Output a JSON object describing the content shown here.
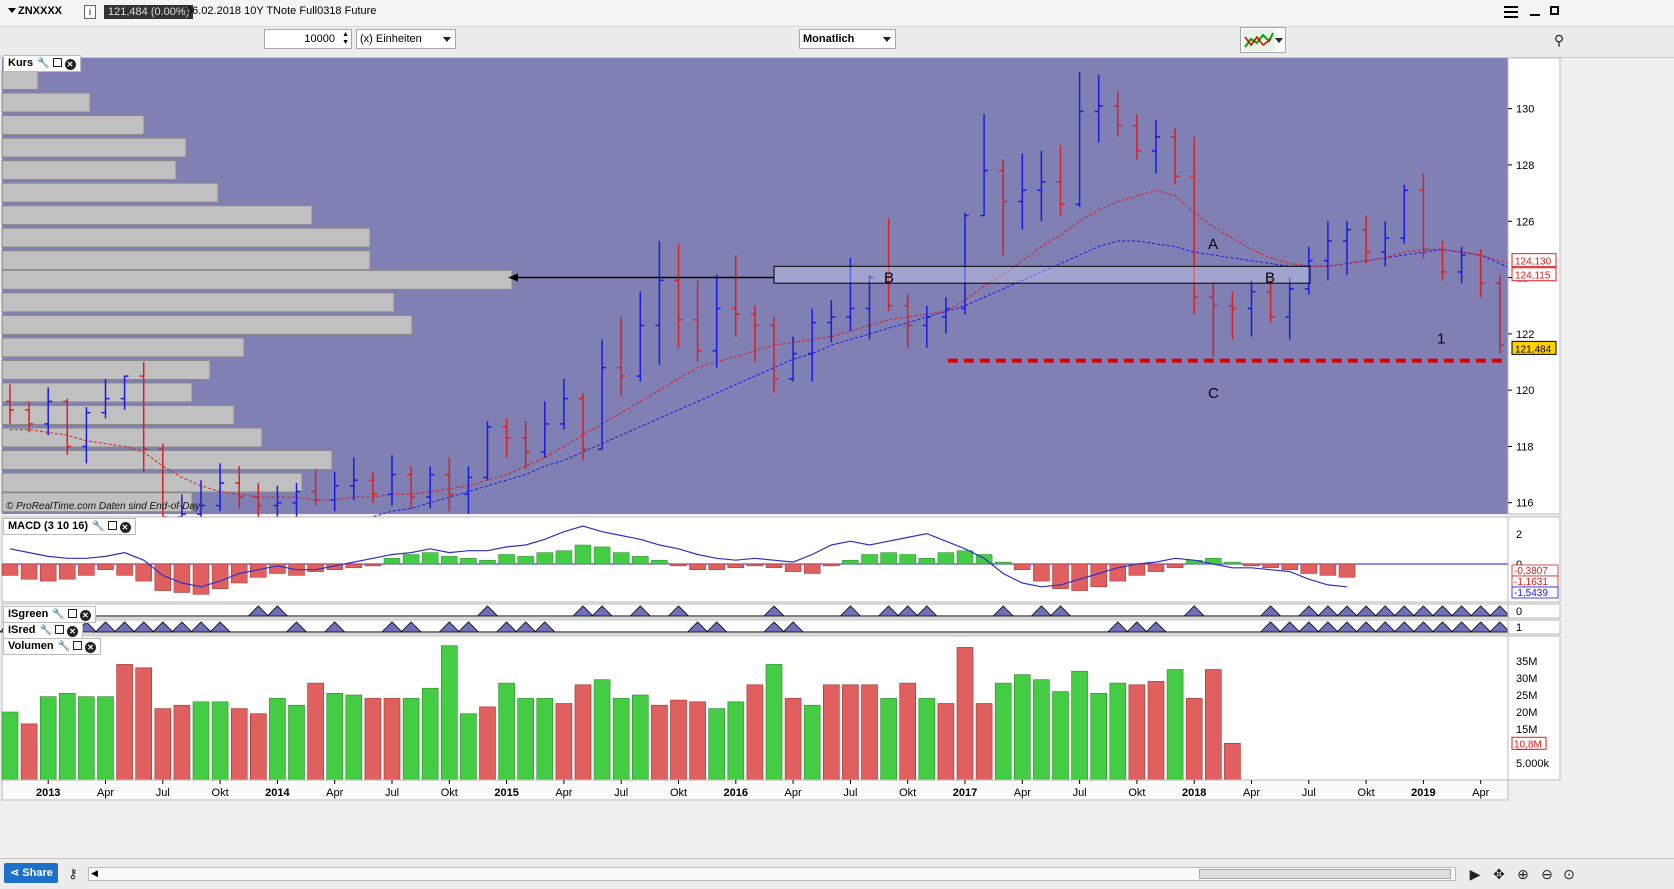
{
  "topbar": {
    "symbol": "ZNXXXX",
    "price_badge": "121,484 (0.00%)",
    "info": "06.02.2018  10Y TNote Full0318 Future"
  },
  "toolbar": {
    "quantity": "10000",
    "unit_label": "(x) Einheiten",
    "timeframe": "Monatlich"
  },
  "panes": {
    "price": {
      "title": "Kurs",
      "watermark": "© ProRealTime.com  Daten sind End-of-Day"
    },
    "macd": {
      "title": "MACD (3 10 16)"
    },
    "isgreen": {
      "title": "ISgreen"
    },
    "isred": {
      "title": "ISred"
    },
    "volume": {
      "title": "Volumen"
    }
  },
  "bottombar": {
    "share_label": "Share"
  },
  "colors": {
    "up": "#1a1adc",
    "down": "#d42020",
    "bg_chart": "#8080b4",
    "vol_up": "#44cc44",
    "vol_down": "#e06060",
    "level_line": "#e00000"
  },
  "annotations": {
    "A": "A",
    "B": "B",
    "C": "C",
    "one": "1"
  },
  "chart_data": {
    "type": "ohlc",
    "timeframe": "monthly",
    "price_axis": {
      "ticks": [
        116,
        118,
        120,
        122,
        124,
        126,
        128,
        130
      ],
      "ylim": [
        115.6,
        131.8
      ]
    },
    "price_labels": [
      "130",
      "128",
      "126",
      "124",
      "122",
      "120",
      "118",
      "116"
    ],
    "last_price_tags": [
      "124,130",
      "124,115",
      "121,484"
    ],
    "macd_axis": {
      "ticks": [
        "2",
        "0"
      ],
      "tags": [
        "-0,3807",
        "-1,1631",
        "-1,5439"
      ]
    },
    "is_axis": {
      "isgreen": "0",
      "isred": "1"
    },
    "volume_axis": {
      "ticks": [
        "35M",
        "30M",
        "25M",
        "20M",
        "15M",
        "10M",
        "5.000k"
      ],
      "tag": "10,8M"
    },
    "x_labels": [
      "2013",
      "Apr",
      "Jul",
      "Okt",
      "2014",
      "Apr",
      "Jul",
      "Okt",
      "2015",
      "Apr",
      "Jul",
      "Okt",
      "2016",
      "Apr",
      "Jul",
      "Okt",
      "2017",
      "Apr",
      "Jul",
      "Okt",
      "2018",
      "Apr",
      "Jul",
      "Okt",
      "2019",
      "Apr"
    ],
    "bars": [
      [
        119.6,
        120.2,
        118.8,
        119.3
      ],
      [
        119.3,
        119.6,
        118.5,
        118.8
      ],
      [
        118.8,
        120.1,
        118.4,
        119.6
      ],
      [
        119.6,
        119.7,
        117.7,
        118.0
      ],
      [
        118.0,
        119.4,
        117.4,
        119.2
      ],
      [
        119.2,
        120.4,
        119.0,
        119.7
      ],
      [
        119.7,
        120.5,
        119.3,
        120.5
      ],
      [
        120.5,
        121.0,
        117.1,
        117.9
      ],
      [
        117.9,
        118.1,
        114.4,
        115.5
      ],
      [
        115.5,
        116.3,
        115.0,
        115.6
      ],
      [
        115.6,
        116.8,
        115.1,
        115.9
      ],
      [
        115.9,
        117.4,
        115.7,
        116.7
      ],
      [
        116.7,
        117.3,
        115.8,
        116.2
      ],
      [
        116.2,
        116.7,
        115.3,
        115.9
      ],
      [
        115.9,
        116.6,
        115.2,
        116.0
      ],
      [
        116.0,
        116.7,
        115.5,
        116.4
      ],
      [
        116.4,
        117.2,
        115.9,
        116.1
      ],
      [
        116.1,
        117.1,
        115.7,
        116.6
      ],
      [
        116.6,
        117.6,
        116.1,
        116.8
      ],
      [
        116.8,
        117.1,
        116.0,
        116.3
      ],
      [
        116.3,
        117.7,
        115.9,
        117.0
      ],
      [
        117.0,
        117.3,
        115.8,
        116.2
      ],
      [
        116.2,
        117.3,
        115.8,
        117.0
      ],
      [
        117.0,
        117.6,
        115.7,
        116.3
      ],
      [
        116.3,
        117.3,
        115.6,
        116.9
      ],
      [
        116.9,
        118.9,
        116.8,
        118.7
      ],
      [
        118.7,
        119.0,
        117.6,
        118.3
      ],
      [
        118.3,
        118.9,
        117.2,
        117.8
      ],
      [
        117.8,
        119.6,
        117.6,
        118.8
      ],
      [
        118.8,
        120.4,
        118.6,
        119.7
      ],
      [
        119.7,
        119.9,
        117.5,
        117.9
      ],
      [
        117.9,
        121.8,
        117.9,
        120.8
      ],
      [
        120.8,
        122.6,
        119.8,
        120.5
      ],
      [
        120.5,
        123.5,
        120.3,
        122.3
      ],
      [
        122.3,
        125.3,
        120.9,
        123.9
      ],
      [
        123.9,
        125.2,
        121.5,
        122.5
      ],
      [
        122.5,
        123.9,
        121.0,
        121.4
      ],
      [
        121.4,
        124.1,
        120.8,
        122.9
      ],
      [
        122.9,
        124.8,
        121.9,
        122.7
      ],
      [
        122.7,
        123.0,
        121.0,
        122.3
      ],
      [
        122.3,
        122.6,
        119.9,
        120.4
      ],
      [
        120.4,
        121.9,
        120.3,
        121.3
      ],
      [
        121.3,
        122.9,
        120.3,
        122.4
      ],
      [
        122.4,
        123.2,
        121.7,
        122.6
      ],
      [
        122.6,
        124.7,
        122.1,
        122.9
      ],
      [
        122.9,
        124.1,
        121.8,
        124.0
      ],
      [
        124.0,
        126.1,
        122.8,
        123.0
      ],
      [
        123.0,
        123.4,
        121.5,
        122.3
      ],
      [
        122.3,
        123.0,
        121.5,
        122.6
      ],
      [
        122.6,
        123.3,
        122.0,
        122.9
      ],
      [
        122.9,
        126.3,
        122.7,
        126.2
      ],
      [
        126.2,
        129.8,
        126.2,
        127.8
      ],
      [
        127.8,
        128.2,
        124.8,
        126.7
      ],
      [
        126.7,
        128.4,
        125.7,
        127.1
      ],
      [
        127.1,
        128.5,
        126.0,
        127.4
      ],
      [
        127.4,
        128.7,
        126.2,
        126.6
      ],
      [
        126.6,
        131.3,
        126.5,
        129.9
      ],
      [
        129.9,
        131.2,
        128.8,
        130.1
      ],
      [
        130.1,
        130.6,
        129.0,
        129.4
      ],
      [
        129.4,
        129.8,
        128.2,
        128.5
      ],
      [
        128.5,
        129.6,
        127.7,
        129.0
      ],
      [
        129.0,
        129.3,
        127.3,
        127.6
      ],
      [
        127.6,
        129.0,
        122.7,
        123.3
      ],
      [
        123.3,
        123.8,
        121.2,
        123.0
      ],
      [
        123.0,
        123.5,
        121.8,
        122.9
      ],
      [
        122.9,
        123.9,
        121.9,
        123.5
      ],
      [
        123.5,
        124.0,
        122.4,
        122.6
      ],
      [
        122.6,
        124.0,
        121.8,
        123.6
      ],
      [
        123.6,
        125.1,
        123.4,
        124.6
      ],
      [
        124.6,
        126.0,
        123.9,
        125.3
      ],
      [
        125.3,
        126.0,
        124.1,
        125.7
      ],
      [
        125.7,
        126.2,
        124.5,
        124.9
      ],
      [
        124.9,
        126.0,
        124.4,
        125.4
      ],
      [
        125.4,
        127.3,
        125.2,
        127.1
      ],
      [
        127.1,
        127.7,
        124.7,
        125.0
      ],
      [
        125.0,
        125.3,
        123.9,
        124.2
      ],
      [
        124.2,
        125.1,
        123.8,
        124.8
      ],
      [
        124.8,
        125.0,
        123.3,
        123.8
      ],
      [
        123.8,
        124.1,
        121.3,
        121.6
      ],
      [
        121.6,
        122.6,
        121.0,
        121.5
      ]
    ],
    "ma_fast": {
      "start": 0,
      "values": [
        118.6,
        118.6,
        118.5,
        118.4,
        118.2,
        118.1,
        118.0,
        117.8,
        117.3,
        116.9,
        116.6,
        116.4,
        116.3,
        116.2,
        116.2,
        116.2,
        116.1,
        116.1,
        116.2,
        116.2,
        116.3,
        116.3,
        116.4,
        116.5,
        116.6,
        116.8,
        117.0,
        117.3,
        117.6,
        118.0,
        118.4,
        118.8,
        119.2,
        119.6,
        120.0,
        120.4,
        120.8,
        121.0,
        121.2,
        121.4,
        121.6,
        121.7,
        121.8,
        121.9,
        122.1,
        122.3,
        122.5,
        122.6,
        122.7,
        122.8,
        123.2,
        123.7,
        124.1,
        124.6,
        125.1,
        125.5,
        126.0,
        126.4,
        126.7,
        126.9,
        127.1,
        126.9,
        126.3,
        125.8,
        125.4,
        125.0,
        124.7,
        124.5,
        124.4,
        124.4,
        124.5,
        124.6,
        124.7,
        124.9,
        125.0,
        125.0,
        124.9,
        124.8,
        124.6,
        124.4
      ]
    },
    "ma_slow": {
      "start": 18,
      "values": [
        115.4,
        115.5,
        115.7,
        115.8,
        116.0,
        116.2,
        116.4,
        116.6,
        116.8,
        117.0,
        117.3,
        117.5,
        117.8,
        118.1,
        118.4,
        118.7,
        119.0,
        119.3,
        119.6,
        119.9,
        120.2,
        120.5,
        120.8,
        121.1,
        121.3,
        121.6,
        121.8,
        122.0,
        122.2,
        122.4,
        122.6,
        122.8,
        123.0,
        123.3,
        123.6,
        123.9,
        124.2,
        124.5,
        124.8,
        125.1,
        125.3,
        125.3,
        125.2,
        125.1,
        124.9,
        124.8,
        124.7,
        124.6,
        124.5,
        124.4,
        124.4,
        124.4,
        124.5,
        124.6,
        124.7,
        124.8,
        124.9,
        125.0,
        124.9,
        124.8,
        124.5,
        124.2
      ]
    },
    "volume_profile": [
      {
        "price": 131.0,
        "w": 36
      },
      {
        "price": 130.2,
        "w": 88
      },
      {
        "price": 129.4,
        "w": 142
      },
      {
        "price": 128.6,
        "w": 184
      },
      {
        "price": 127.8,
        "w": 174
      },
      {
        "price": 127.0,
        "w": 216
      },
      {
        "price": 126.2,
        "w": 310
      },
      {
        "price": 125.4,
        "w": 368
      },
      {
        "price": 124.6,
        "w": 368
      },
      {
        "price": 123.9,
        "w": 510
      },
      {
        "price": 123.1,
        "w": 392
      },
      {
        "price": 122.3,
        "w": 410
      },
      {
        "price": 121.5,
        "w": 242
      },
      {
        "price": 120.7,
        "w": 208
      },
      {
        "price": 119.9,
        "w": 190
      },
      {
        "price": 119.1,
        "w": 232
      },
      {
        "price": 118.3,
        "w": 260
      },
      {
        "price": 117.5,
        "w": 330
      },
      {
        "price": 116.7,
        "w": 300
      },
      {
        "price": 116.0,
        "w": 190
      }
    ],
    "volume_millions": [
      20,
      16.5,
      24.5,
      25.5,
      24.5,
      24.5,
      34,
      33,
      21,
      22,
      23,
      23,
      21,
      19.5,
      24,
      22,
      28.5,
      25.5,
      25,
      24,
      24,
      24,
      27,
      39.5,
      19.5,
      21.5,
      28.5,
      24,
      24,
      22.5,
      28,
      29.5,
      24,
      25,
      22,
      23.5,
      23,
      21,
      23,
      28,
      34,
      24,
      22,
      28,
      28,
      28,
      24,
      28.5,
      24,
      22.5,
      39,
      22.5,
      28.5,
      31,
      29.5,
      26,
      32,
      25.5,
      28.5,
      28,
      29,
      32.5,
      24,
      32.5,
      10.8
    ],
    "volume_up": [
      1,
      0,
      1,
      1,
      1,
      1,
      0,
      0,
      0,
      0,
      1,
      1,
      0,
      0,
      1,
      1,
      0,
      1,
      1,
      0,
      0,
      1,
      1,
      1,
      1,
      0,
      1,
      1,
      1,
      0,
      0,
      1,
      1,
      1,
      0,
      0,
      0,
      1,
      1,
      0,
      1,
      0,
      1,
      0,
      0,
      0,
      1,
      0,
      1,
      0,
      0,
      0,
      1,
      1,
      1,
      1,
      1,
      1,
      1,
      0,
      0,
      1,
      0,
      0,
      0
    ],
    "macd_hist": [
      -0.6,
      -0.8,
      -0.9,
      -0.8,
      -0.6,
      -0.3,
      -0.6,
      -0.9,
      -1.4,
      -1.5,
      -1.6,
      -1.3,
      -1.0,
      -0.7,
      -0.5,
      -0.6,
      -0.4,
      -0.3,
      -0.2,
      -0.1,
      0.3,
      0.5,
      0.6,
      0.4,
      0.3,
      0.2,
      0.5,
      0.4,
      0.6,
      0.7,
      1.0,
      0.9,
      0.6,
      0.4,
      0.2,
      -0.1,
      -0.3,
      -0.3,
      -0.2,
      -0.1,
      -0.2,
      -0.4,
      -0.5,
      -0.1,
      0.2,
      0.5,
      0.6,
      0.5,
      0.3,
      0.6,
      0.7,
      0.5,
      0.1,
      -0.3,
      -0.9,
      -1.3,
      -1.4,
      -1.2,
      -0.9,
      -0.6,
      -0.4,
      -0.2,
      0.2,
      0.3,
      0.1,
      -0.1,
      -0.2,
      -0.3,
      -0.5,
      -0.6,
      -0.7
    ],
    "macd_line": [
      0.8,
      0.6,
      0.4,
      0.3,
      0.3,
      0.4,
      0.6,
      0.2,
      -0.6,
      -1.0,
      -1.2,
      -0.9,
      -0.5,
      -0.3,
      -0.1,
      -0.3,
      -0.3,
      -0.1,
      0.1,
      0.3,
      0.5,
      0.6,
      0.8,
      0.6,
      0.7,
      0.7,
      0.9,
      1.0,
      1.3,
      1.7,
      2.0,
      1.7,
      1.5,
      1.3,
      1.0,
      0.8,
      0.5,
      0.3,
      0.2,
      0.3,
      0.2,
      0.1,
      0.5,
      1.0,
      1.2,
      1.0,
      1.2,
      1.4,
      1.6,
      1.2,
      0.8,
      0.3,
      -0.5,
      -1.0,
      -1.2,
      -1.1,
      -0.8,
      -0.5,
      -0.2,
      0.0,
      0.1,
      0.3,
      0.2,
      0.0,
      -0.2,
      -0.2,
      -0.3,
      -0.4,
      -0.8,
      -1.1,
      -1.2
    ],
    "is_green_active": [
      13,
      14,
      25,
      30,
      31,
      33,
      35,
      40,
      44,
      46,
      47,
      48,
      52,
      54,
      55,
      62,
      66,
      68,
      69,
      70,
      71,
      72,
      73,
      74,
      75,
      76,
      77,
      78,
      79,
      80
    ],
    "is_red_active": [
      0,
      1,
      2,
      3,
      4,
      5,
      6,
      7,
      8,
      9,
      10,
      11,
      15,
      17,
      20,
      21,
      23,
      24,
      26,
      27,
      28,
      36,
      37,
      40,
      41,
      58,
      59,
      60,
      66,
      67,
      68,
      69,
      70,
      71,
      72,
      73,
      74,
      75,
      76,
      77,
      78,
      79,
      80
    ],
    "zone_B_price": [
      123.8,
      124.4
    ],
    "level_1_price": 121.05
  }
}
